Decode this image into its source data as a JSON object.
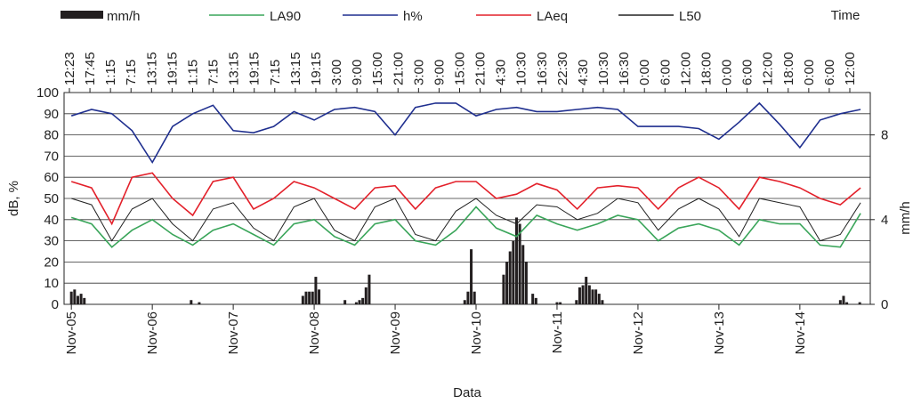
{
  "chart_data": {
    "type": "line",
    "x_title": "Data",
    "y_title": "dB, %",
    "y2_title": "mm/h",
    "top_title": "Time",
    "top_labels": [
      "12:23",
      "17:45",
      "1:15",
      "7:15",
      "13:15",
      "19:15",
      "1:15",
      "7:15",
      "13:15",
      "19:15",
      "7:15",
      "13:15",
      "19:15",
      "3:00",
      "9:00",
      "15:00",
      "21:00",
      "3:00",
      "9:00",
      "15:00",
      "21:00",
      "4:30",
      "10:30",
      "16:30",
      "22:30",
      "4:30",
      "10:30",
      "16:30",
      "0:00",
      "6:00",
      "12:00",
      "18:00",
      "0:00",
      "6:00",
      "12:00",
      "18:00",
      "0:00",
      "6:00",
      "12:00"
    ],
    "xlim": [
      -0.09,
      9.87
    ],
    "xticks": [
      {
        "value": 0,
        "label": "Nov-05"
      },
      {
        "value": 1,
        "label": "Nov-06"
      },
      {
        "value": 2,
        "label": "Nov-07"
      },
      {
        "value": 3,
        "label": "Nov-08"
      },
      {
        "value": 4,
        "label": "Nov-09"
      },
      {
        "value": 5,
        "label": "Nov-10"
      },
      {
        "value": 6,
        "label": "Nov-11"
      },
      {
        "value": 7,
        "label": "Nov-12"
      },
      {
        "value": 8,
        "label": "Nov-13"
      },
      {
        "value": 9,
        "label": "Nov-14"
      }
    ],
    "ylim": [
      0,
      100
    ],
    "yticks": [
      0,
      10,
      20,
      30,
      40,
      50,
      60,
      70,
      80,
      90,
      100
    ],
    "y2lim": [
      0,
      10
    ],
    "y2ticks": [
      0,
      4,
      8
    ],
    "grid": true,
    "x": [
      0,
      0.25,
      0.5,
      0.75,
      1,
      1.25,
      1.5,
      1.75,
      2,
      2.25,
      2.5,
      2.75,
      3,
      3.25,
      3.5,
      3.75,
      4,
      4.25,
      4.5,
      4.75,
      5,
      5.25,
      5.5,
      5.75,
      6,
      6.25,
      6.5,
      6.75,
      7,
      7.25,
      7.5,
      7.75,
      8,
      8.25,
      8.5,
      8.75,
      9,
      9.25,
      9.5,
      9.75
    ],
    "series": [
      {
        "name": "mm/h",
        "type": "bar",
        "axis": "y2",
        "color": "#231f20",
        "x": [
          0,
          0.04,
          0.08,
          0.12,
          0.16,
          1.48,
          1.58,
          2.86,
          2.9,
          2.94,
          2.98,
          3.02,
          3.06,
          3.38,
          3.52,
          3.56,
          3.6,
          3.64,
          3.68,
          4.86,
          4.9,
          4.94,
          4.98,
          5.34,
          5.38,
          5.42,
          5.46,
          5.5,
          5.54,
          5.58,
          5.62,
          5.7,
          5.74,
          6.0,
          6.04,
          6.24,
          6.28,
          6.32,
          6.36,
          6.4,
          6.44,
          6.48,
          6.52,
          6.56,
          9.5,
          9.54,
          9.58,
          9.74
        ],
        "values": [
          0.6,
          0.7,
          0.4,
          0.5,
          0.3,
          0.2,
          0.1,
          0.4,
          0.6,
          0.6,
          0.6,
          1.3,
          0.7,
          0.2,
          0.1,
          0.2,
          0.3,
          0.8,
          1.4,
          0.2,
          0.6,
          2.6,
          0.6,
          1.4,
          2.0,
          2.5,
          3.0,
          4.1,
          3.8,
          2.8,
          2.0,
          0.5,
          0.3,
          0.1,
          0.1,
          0.2,
          0.8,
          0.9,
          1.3,
          0.9,
          0.7,
          0.7,
          0.5,
          0.2,
          0.2,
          0.4,
          0.1,
          0.1
        ]
      },
      {
        "name": "LA90",
        "type": "line",
        "color": "#3aa55a",
        "values": [
          41,
          38,
          27,
          35,
          40,
          33,
          28,
          35,
          38,
          33,
          28,
          38,
          40,
          32,
          28,
          38,
          40,
          30,
          28,
          35,
          46,
          36,
          32,
          42,
          38,
          35,
          38,
          42,
          40,
          30,
          36,
          38,
          35,
          28,
          40,
          38,
          38,
          28,
          27,
          43
        ]
      },
      {
        "name": "h%",
        "type": "line",
        "color": "#1f2f8f",
        "values": [
          89,
          92,
          90,
          82,
          67,
          84,
          90,
          94,
          82,
          81,
          84,
          91,
          87,
          92,
          93,
          91,
          80,
          93,
          95,
          95,
          89,
          92,
          93,
          91,
          91,
          92,
          93,
          92,
          84,
          84,
          84,
          83,
          78,
          86,
          95,
          85,
          74,
          87,
          90,
          92
        ]
      },
      {
        "name": "LAeq",
        "type": "line",
        "color": "#e3202a",
        "values": [
          58,
          55,
          38,
          60,
          62,
          50,
          42,
          58,
          60,
          45,
          50,
          58,
          55,
          50,
          45,
          55,
          56,
          45,
          55,
          58,
          58,
          50,
          52,
          57,
          54,
          45,
          55,
          56,
          55,
          45,
          55,
          60,
          55,
          45,
          60,
          58,
          55,
          50,
          47,
          55
        ]
      },
      {
        "name": "L50",
        "type": "line",
        "color": "#222222",
        "values": [
          50,
          47,
          30,
          45,
          50,
          38,
          30,
          45,
          48,
          36,
          30,
          46,
          50,
          35,
          30,
          46,
          50,
          33,
          30,
          44,
          50,
          42,
          38,
          47,
          46,
          40,
          43,
          50,
          48,
          35,
          45,
          50,
          45,
          32,
          50,
          48,
          46,
          30,
          33,
          48
        ]
      }
    ]
  }
}
